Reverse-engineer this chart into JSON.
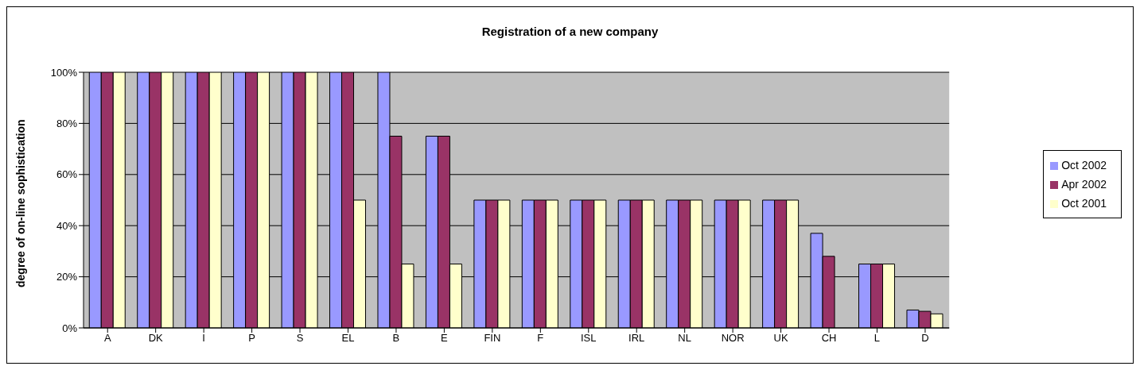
{
  "chart_data": {
    "type": "bar",
    "title": "Registration of a new company",
    "ylabel": "degree of on-line sophistication",
    "categories": [
      "A",
      "DK",
      "I",
      "P",
      "S",
      "EL",
      "B",
      "E",
      "FIN",
      "F",
      "ISL",
      "IRL",
      "NL",
      "NOR",
      "UK",
      "CH",
      "L",
      "D"
    ],
    "series": [
      {
        "name": "Oct 2002",
        "color": "#9999ff",
        "values": [
          100,
          100,
          100,
          100,
          100,
          100,
          100,
          75,
          50,
          50,
          50,
          50,
          50,
          50,
          50,
          37,
          25,
          7
        ]
      },
      {
        "name": "Apr 2002",
        "color": "#993366",
        "values": [
          100,
          100,
          100,
          100,
          100,
          100,
          75,
          75,
          50,
          50,
          50,
          50,
          50,
          50,
          50,
          28,
          25,
          6.5
        ]
      },
      {
        "name": "Oct 2001",
        "color": "#ffffcc",
        "values": [
          100,
          100,
          100,
          100,
          100,
          50,
          25,
          25,
          50,
          50,
          50,
          50,
          50,
          50,
          50,
          0,
          25,
          5.5
        ]
      }
    ],
    "ylim": [
      0,
      100
    ],
    "yticks": [
      {
        "value": 0,
        "label": "0%"
      },
      {
        "value": 20,
        "label": "20%"
      },
      {
        "value": 40,
        "label": "40%"
      },
      {
        "value": 60,
        "label": "60%"
      },
      {
        "value": 80,
        "label": "80%"
      },
      {
        "value": 100,
        "label": "100%"
      }
    ],
    "grid": "y",
    "legend": "right"
  }
}
